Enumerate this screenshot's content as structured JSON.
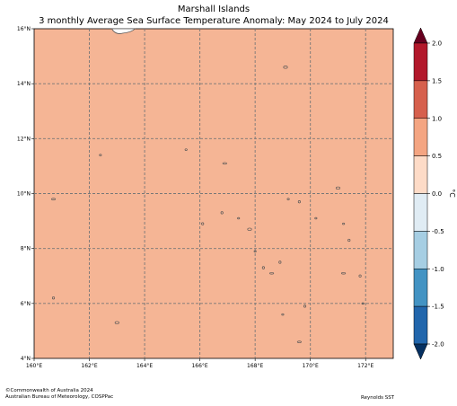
{
  "title": {
    "line1": "Marshall Islands",
    "line2": "3 monthly Average Sea Surface Temperature Anomaly: May 2024 to July 2024"
  },
  "map": {
    "region": "Marshall Islands",
    "lon_range": [
      160,
      173
    ],
    "lat_range": [
      4,
      16
    ],
    "anomaly_fill_color": "#f5b595",
    "land_outline_color": "#555555",
    "grid": "dashed",
    "lon_ticks": [
      {
        "value": 160,
        "label": "160°E"
      },
      {
        "value": 162,
        "label": "162°E"
      },
      {
        "value": 164,
        "label": "164°E"
      },
      {
        "value": 166,
        "label": "166°E"
      },
      {
        "value": 168,
        "label": "168°E"
      },
      {
        "value": 170,
        "label": "170°E"
      },
      {
        "value": 172,
        "label": "172°E"
      }
    ],
    "lat_ticks": [
      {
        "value": 4,
        "label": "4°N"
      },
      {
        "value": 6,
        "label": "6°N"
      },
      {
        "value": 8,
        "label": "8°N"
      },
      {
        "value": 10,
        "label": "10°N"
      },
      {
        "value": 12,
        "label": "12°N"
      },
      {
        "value": 14,
        "label": "14°N"
      },
      {
        "value": 16,
        "label": "16°N"
      }
    ],
    "islands": [
      {
        "lon": 160.7,
        "lat": 9.8
      },
      {
        "lon": 160.7,
        "lat": 6.2
      },
      {
        "lon": 162.4,
        "lat": 11.4
      },
      {
        "lon": 163.0,
        "lat": 5.3
      },
      {
        "lon": 165.5,
        "lat": 11.6
      },
      {
        "lon": 166.1,
        "lat": 8.9
      },
      {
        "lon": 166.9,
        "lat": 11.1
      },
      {
        "lon": 166.8,
        "lat": 9.3
      },
      {
        "lon": 167.4,
        "lat": 9.1
      },
      {
        "lon": 167.8,
        "lat": 8.7
      },
      {
        "lon": 168.0,
        "lat": 7.9
      },
      {
        "lon": 168.3,
        "lat": 7.3
      },
      {
        "lon": 168.6,
        "lat": 7.1
      },
      {
        "lon": 168.9,
        "lat": 7.5
      },
      {
        "lon": 169.0,
        "lat": 5.6
      },
      {
        "lon": 169.1,
        "lat": 14.6
      },
      {
        "lon": 169.2,
        "lat": 9.8
      },
      {
        "lon": 169.6,
        "lat": 9.7
      },
      {
        "lon": 169.6,
        "lat": 4.6
      },
      {
        "lon": 169.8,
        "lat": 5.9
      },
      {
        "lon": 170.2,
        "lat": 9.1
      },
      {
        "lon": 171.0,
        "lat": 10.2
      },
      {
        "lon": 171.2,
        "lat": 8.9
      },
      {
        "lon": 171.4,
        "lat": 8.3
      },
      {
        "lon": 171.2,
        "lat": 7.1
      },
      {
        "lon": 171.8,
        "lat": 7.0
      },
      {
        "lon": 171.9,
        "lat": 6.0
      },
      {
        "lon": 163.2,
        "lat": 16.0
      }
    ]
  },
  "colorbar": {
    "unit": "°C",
    "min": -2.0,
    "max": 2.0,
    "bands": [
      {
        "from": 2.0,
        "to": 2.5,
        "color": "#67001f",
        "extend": "max"
      },
      {
        "from": 1.5,
        "to": 2.0,
        "color": "#b2182b"
      },
      {
        "from": 1.0,
        "to": 1.5,
        "color": "#d6604d"
      },
      {
        "from": 0.5,
        "to": 1.0,
        "color": "#f4a582"
      },
      {
        "from": 0.0,
        "to": 0.5,
        "color": "#fddbc7"
      },
      {
        "from": -0.5,
        "to": 0.0,
        "color": "#e0ecf4"
      },
      {
        "from": -1.0,
        "to": -0.5,
        "color": "#a6cee3"
      },
      {
        "from": -1.5,
        "to": -1.0,
        "color": "#4393c3"
      },
      {
        "from": -2.0,
        "to": -1.5,
        "color": "#2166ac"
      },
      {
        "from": -2.5,
        "to": -2.0,
        "color": "#053061",
        "extend": "min"
      }
    ],
    "ticks": [
      {
        "value": 2.0,
        "label": "2.0"
      },
      {
        "value": 1.5,
        "label": "1.5"
      },
      {
        "value": 1.0,
        "label": "1.0"
      },
      {
        "value": 0.5,
        "label": "0.5"
      },
      {
        "value": 0.0,
        "label": "0.0"
      },
      {
        "value": -0.5,
        "label": "-0.5"
      },
      {
        "value": -1.0,
        "label": "-1.0"
      },
      {
        "value": -1.5,
        "label": "-1.5"
      },
      {
        "value": -2.0,
        "label": "-2.0"
      }
    ]
  },
  "footer": {
    "copyright": "©Commonwealth of Australia 2024",
    "agency": "Australian Bureau of Meteorology, COSPPac",
    "dataset": "Reynolds SST"
  }
}
